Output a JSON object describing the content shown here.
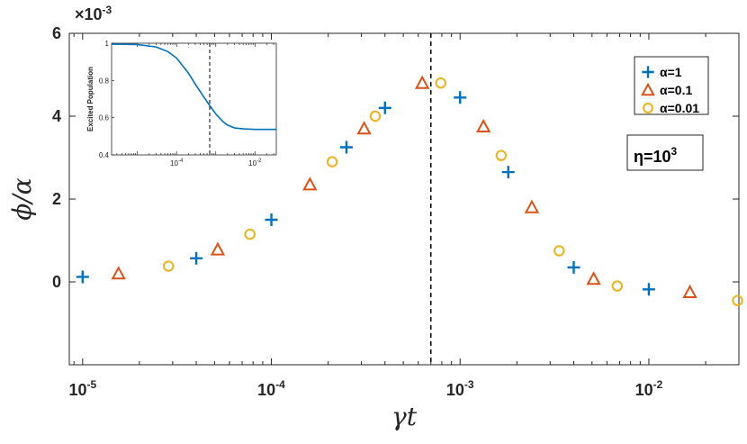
{
  "chart_data": [
    {
      "type": "scatter",
      "title": "",
      "xlabel": "γt",
      "ylabel": "ϕ/α",
      "x_scale": "log",
      "xlim": [
        8.5e-06,
        0.03
      ],
      "ylim": [
        -0.002,
        0.006
      ],
      "y_multiplier": "×10^-3",
      "x_ticks": [
        {
          "value": 1e-05,
          "base": "10",
          "exp": "-5"
        },
        {
          "value": 0.0001,
          "base": "10",
          "exp": "-4"
        },
        {
          "value": 0.001,
          "base": "10",
          "exp": "-3"
        },
        {
          "value": 0.01,
          "base": "10",
          "exp": "-2"
        }
      ],
      "y_ticks": [
        {
          "value": 0,
          "label": "0"
        },
        {
          "value": 0.002,
          "label": "2"
        },
        {
          "value": 0.004,
          "label": "4"
        },
        {
          "value": 0.006,
          "label": "6"
        }
      ],
      "vline": 0.0007,
      "legend_position": "top-right",
      "series": [
        {
          "name": "α=1",
          "marker": "plus",
          "color": "#0072BD",
          "points": [
            [
              1e-05,
              0.00012
            ],
            [
              4e-05,
              0.00057
            ],
            [
              0.0001,
              0.0015
            ],
            [
              0.00025,
              0.00325
            ],
            [
              0.0004,
              0.0042
            ],
            [
              0.001,
              0.00445
            ],
            [
              0.0018,
              0.00265
            ],
            [
              0.004,
              0.00035
            ],
            [
              0.01,
              -0.00018
            ]
          ]
        },
        {
          "name": "α=0.1",
          "marker": "triangle",
          "color": "#D95319",
          "points": [
            [
              1.55e-05,
              0.0002
            ],
            [
              5.2e-05,
              0.00078
            ],
            [
              0.00016,
              0.00235
            ],
            [
              0.00031,
              0.0037
            ],
            [
              0.00063,
              0.0048
            ],
            [
              0.00133,
              0.00375
            ],
            [
              0.0024,
              0.0018
            ],
            [
              0.0051,
              7e-05
            ],
            [
              0.0165,
              -0.00025
            ]
          ]
        },
        {
          "name": "α=0.01",
          "marker": "circle",
          "color": "#EDB120",
          "points": [
            [
              2.85e-05,
              0.00038
            ],
            [
              7.7e-05,
              0.00115
            ],
            [
              0.00021,
              0.0029
            ],
            [
              0.000355,
              0.004
            ],
            [
              0.00079,
              0.0048
            ],
            [
              0.00165,
              0.00305
            ],
            [
              0.00335,
              0.00075
            ],
            [
              0.0068,
              -0.0001
            ],
            [
              0.0295,
              -0.00045
            ]
          ]
        }
      ],
      "annotation": {
        "base": "η=10",
        "exp": "3"
      }
    },
    {
      "type": "line",
      "title": "",
      "xlabel": "",
      "ylabel": "Excited Population",
      "x_scale": "log",
      "xlim": [
        2.2e-06,
        0.035
      ],
      "ylim": [
        0.4,
        1.0
      ],
      "x_ticks": [
        {
          "value": 0.0001,
          "base": "10",
          "exp": "-4"
        },
        {
          "value": 0.01,
          "base": "10",
          "exp": "-2"
        }
      ],
      "y_ticks": [
        {
          "value": 0.4,
          "label": "0.4"
        },
        {
          "value": 0.6,
          "label": "0.6"
        },
        {
          "value": 0.8,
          "label": "0.8"
        },
        {
          "value": 1.0,
          "label": "1"
        }
      ],
      "vline": 0.0007,
      "series": [
        {
          "color": "#0072BD",
          "points": [
            [
              2.2e-06,
              0.995
            ],
            [
              1e-05,
              0.993
            ],
            [
              3e-05,
              0.98
            ],
            [
              6e-05,
              0.955
            ],
            [
              0.0001,
              0.92
            ],
            [
              0.0002,
              0.84
            ],
            [
              0.0003,
              0.78
            ],
            [
              0.0005,
              0.71
            ],
            [
              0.0007,
              0.665
            ],
            [
              0.001,
              0.62
            ],
            [
              0.0015,
              0.58
            ],
            [
              0.002,
              0.56
            ],
            [
              0.003,
              0.545
            ],
            [
              0.005,
              0.54
            ],
            [
              0.01,
              0.537
            ],
            [
              0.035,
              0.537
            ]
          ]
        }
      ]
    }
  ]
}
